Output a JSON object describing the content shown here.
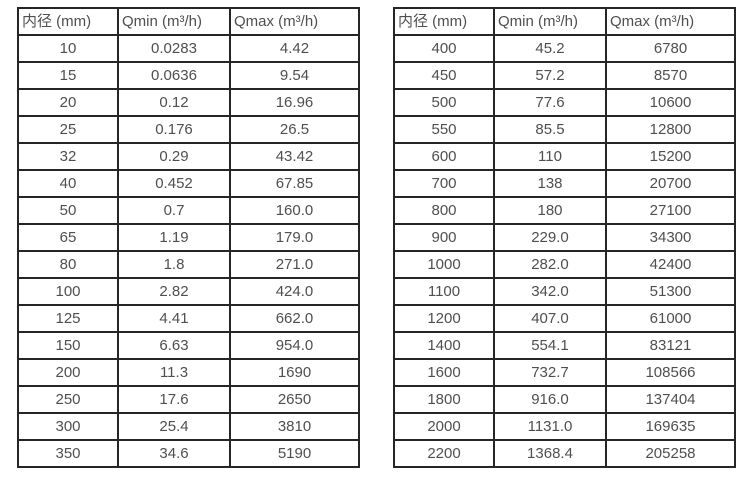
{
  "page": {
    "background_color": "#ffffff",
    "text_color": "#4f4f4f",
    "border_color": "#262626"
  },
  "tables": [
    {
      "name": "flow-table-small-diameters",
      "headers": [
        "内径 (mm)",
        "Qmin (m³/h)",
        "Qmax (m³/h)"
      ],
      "rows": [
        [
          "10",
          "0.0283",
          "4.42"
        ],
        [
          "15",
          "0.0636",
          "9.54"
        ],
        [
          "20",
          "0.12",
          "16.96"
        ],
        [
          "25",
          "0.176",
          "26.5"
        ],
        [
          "32",
          "0.29",
          "43.42"
        ],
        [
          "40",
          "0.452",
          "67.85"
        ],
        [
          "50",
          "0.7",
          "160.0"
        ],
        [
          "65",
          "1.19",
          "179.0"
        ],
        [
          "80",
          "1.8",
          "271.0"
        ],
        [
          "100",
          "2.82",
          "424.0"
        ],
        [
          "125",
          "4.41",
          "662.0"
        ],
        [
          "150",
          "6.63",
          "954.0"
        ],
        [
          "200",
          "11.3",
          "1690"
        ],
        [
          "250",
          "17.6",
          "2650"
        ],
        [
          "300",
          "25.4",
          "3810"
        ],
        [
          "350",
          "34.6",
          "5190"
        ]
      ]
    },
    {
      "name": "flow-table-large-diameters",
      "headers": [
        "内径 (mm)",
        "Qmin (m³/h)",
        "Qmax (m³/h)"
      ],
      "rows": [
        [
          "400",
          "45.2",
          "6780"
        ],
        [
          "450",
          "57.2",
          "8570"
        ],
        [
          "500",
          "77.6",
          "10600"
        ],
        [
          "550",
          "85.5",
          "12800"
        ],
        [
          "600",
          "110",
          "15200"
        ],
        [
          "700",
          "138",
          "20700"
        ],
        [
          "800",
          "180",
          "27100"
        ],
        [
          "900",
          "229.0",
          "34300"
        ],
        [
          "1000",
          "282.0",
          "42400"
        ],
        [
          "1100",
          "342.0",
          "51300"
        ],
        [
          "1200",
          "407.0",
          "61000"
        ],
        [
          "1400",
          "554.1",
          "83121"
        ],
        [
          "1600",
          "732.7",
          "108566"
        ],
        [
          "1800",
          "916.0",
          "137404"
        ],
        [
          "2000",
          "1131.0",
          "169635"
        ],
        [
          "2200",
          "1368.4",
          "205258"
        ]
      ]
    }
  ]
}
